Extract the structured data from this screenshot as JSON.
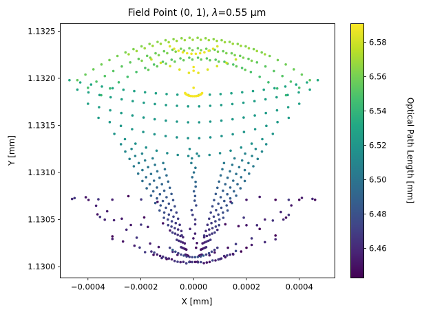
{
  "chart_data": {
    "type": "scatter",
    "title": "Field Point (0, 1), λ=0.55 µm",
    "title_parts": {
      "prefix": "Field Point (0, 1), ",
      "symbol": "λ",
      "suffix": "=0.55 µm"
    },
    "xlabel": "X [mm]",
    "ylabel": "Y [mm]",
    "xlim": [
      -0.000505,
      0.000535
    ],
    "ylim": [
      1.12988,
      1.13258
    ],
    "xticks": [
      -0.0004,
      -0.0002,
      0.0,
      0.0002,
      0.0004
    ],
    "xtick_labels": [
      "−0.0004",
      "−0.0002",
      "0.0000",
      "0.0002",
      "0.0004"
    ],
    "yticks": [
      1.13,
      1.1305,
      1.131,
      1.1315,
      1.132,
      1.1325
    ],
    "ytick_labels": [
      "1.1300",
      "1.1305",
      "1.1310",
      "1.1315",
      "1.1320",
      "1.1325"
    ],
    "colorbar": {
      "label": "Optical Path Length [mm]",
      "colormap": "viridis",
      "range": [
        6.4428,
        6.5908
      ],
      "ticks": [
        6.46,
        6.48,
        6.5,
        6.52,
        6.54,
        6.56,
        6.58
      ],
      "tick_labels": [
        "6.46",
        "6.48",
        "6.50",
        "6.52",
        "6.54",
        "6.56",
        "6.58"
      ]
    },
    "grid": false,
    "colors": {
      "low": "#440154",
      "mid": "#21918c",
      "high": "#fde725"
    },
    "series_description": "Ray intercept points colored by optical path length; generated from approximate ring structure",
    "rings": [
      {
        "y_center": 1.13195,
        "half_width": 0.00047,
        "sag": 0.0,
        "opl": 6.533,
        "n": 24,
        "curve": -0.0004
      },
      {
        "y_center": 1.13185,
        "half_width": 0.00044,
        "sag": 0.0,
        "opl": 6.53,
        "n": 22,
        "curve": -0.0004
      },
      {
        "y_center": 1.1317,
        "half_width": 0.0004,
        "sag": 0.0,
        "opl": 6.527,
        "n": 20,
        "curve": -0.0004
      },
      {
        "y_center": 1.13155,
        "half_width": 0.00036,
        "sag": 0.0,
        "opl": 6.524,
        "n": 18,
        "curve": -0.0004
      },
      {
        "y_center": 1.13138,
        "half_width": 0.0003,
        "sag": 0.0,
        "opl": 6.52,
        "n": 16,
        "curve": -0.0004
      }
    ],
    "upper_arcs": [
      {
        "y_top": 1.13243,
        "half_width": 0.00044,
        "drop": 0.00045,
        "opl": 6.565,
        "n": 30
      },
      {
        "y_top": 1.13232,
        "half_width": 0.0004,
        "drop": 0.00042,
        "opl": 6.558,
        "n": 26
      },
      {
        "y_top": 1.13222,
        "half_width": 0.00035,
        "drop": 0.0004,
        "opl": 6.552,
        "n": 22
      }
    ],
    "yellow_core": [
      {
        "x": 0.0,
        "y": 1.13208,
        "opl": 6.588
      },
      {
        "x": 0.0,
        "y": 1.13212,
        "opl": 6.588
      },
      {
        "x": 0.0,
        "y": 1.1319,
        "opl": 6.588
      }
    ]
  }
}
